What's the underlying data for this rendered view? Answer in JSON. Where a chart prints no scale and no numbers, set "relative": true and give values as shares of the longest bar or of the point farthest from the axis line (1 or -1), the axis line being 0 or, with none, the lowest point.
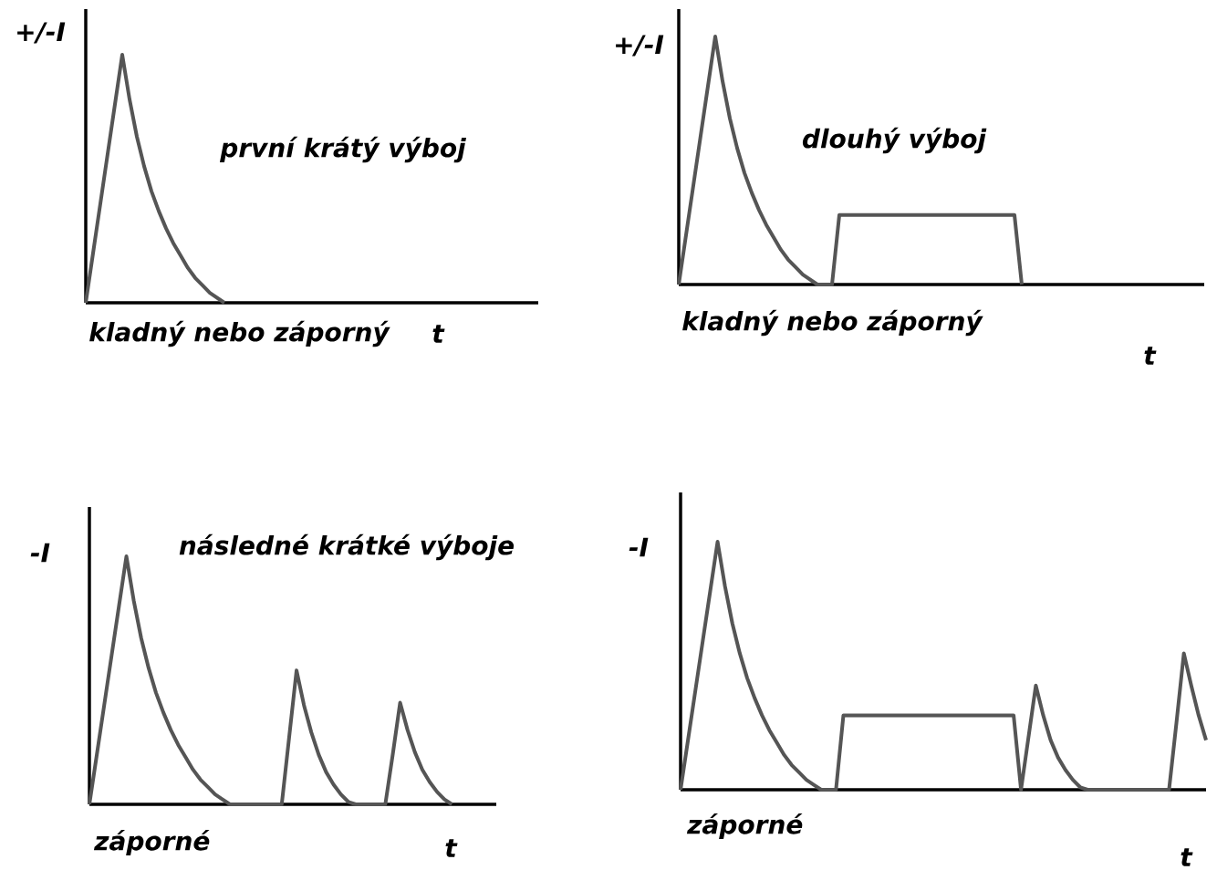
{
  "chart_data": [
    {
      "type": "line",
      "relative": true,
      "title": "první krátý výboj",
      "ylabel": "+/-I",
      "xlabel": "t",
      "annotations": [
        "kladný nebo záporný"
      ],
      "categories": [
        null,
        null,
        null,
        null,
        null,
        null,
        null,
        null,
        null,
        null,
        null,
        null,
        null,
        null,
        null,
        null,
        null,
        null,
        null,
        null,
        null,
        null,
        null,
        null,
        null,
        null,
        null,
        null,
        null,
        null,
        null,
        null,
        null,
        null,
        null,
        null,
        null,
        null,
        null,
        null,
        null,
        null,
        null,
        null,
        null,
        null,
        null,
        null,
        null,
        null,
        null,
        null,
        null,
        null,
        null,
        null,
        null,
        null,
        null,
        null,
        null,
        null,
        null
      ],
      "series": [
        {
          "color": "#555555",
          "values": [
            0,
            0.2,
            0.4,
            0.6,
            0.8,
            1,
            0.82,
            0.67,
            0.55,
            0.45,
            0.37,
            0.3,
            0.24,
            0.19,
            0.14,
            0.1,
            0.07,
            0.04,
            0.02,
            0,
            null,
            null,
            null,
            null,
            null,
            null,
            null,
            null,
            null,
            null,
            null,
            null,
            null,
            null,
            null,
            null,
            null,
            null,
            null,
            null,
            null,
            null,
            null,
            null,
            null,
            null,
            null,
            null,
            null,
            null,
            null,
            null,
            null,
            null,
            null,
            null,
            null,
            null,
            null,
            null,
            null,
            null,
            null
          ]
        }
      ]
    },
    {
      "type": "line",
      "relative": true,
      "title": "dlouhý výboj",
      "ylabel": "+/-I",
      "xlabel": "t",
      "annotations": [
        "kladný nebo záporný"
      ],
      "categories": [
        null,
        null,
        null,
        null,
        null,
        null,
        null,
        null,
        null,
        null,
        null,
        null,
        null,
        null,
        null,
        null,
        null,
        null,
        null,
        null,
        null,
        null,
        null,
        null,
        null,
        null,
        null,
        null,
        null,
        null,
        null,
        null,
        null,
        null,
        null,
        null,
        null,
        null,
        null,
        null,
        null,
        null,
        null,
        null,
        null,
        null,
        null,
        null,
        null,
        null,
        null,
        null,
        null,
        null,
        null,
        null,
        null,
        null,
        null,
        null,
        null,
        null,
        null,
        null,
        null,
        null,
        null,
        null,
        null,
        null,
        null,
        null,
        null
      ],
      "series": [
        {
          "color": "#555555",
          "values": [
            0,
            0.2,
            0.4,
            0.6,
            0.8,
            1,
            0.82,
            0.67,
            0.55,
            0.45,
            0.37,
            0.3,
            0.24,
            0.19,
            0.14,
            0.1,
            0.07,
            0.04,
            0.02,
            0,
            0,
            0,
            0.28,
            0.28,
            0.28,
            0.28,
            0.28,
            0.28,
            0.28,
            0.28,
            0.28,
            0.28,
            0.28,
            0.28,
            0.28,
            0.28,
            0.28,
            0.28,
            0.28,
            0.28,
            0.28,
            0.28,
            0.28,
            0.28,
            0.28,
            0.28,
            0.28,
            0,
            null,
            null,
            null,
            null,
            null,
            null,
            null,
            null,
            null,
            null,
            null,
            null,
            null,
            null,
            null,
            null,
            null,
            null,
            null,
            null,
            null,
            null,
            null,
            null,
            null
          ]
        }
      ]
    },
    {
      "type": "line",
      "relative": true,
      "title": "následné krátké výboje",
      "ylabel": "-I",
      "xlabel": "t",
      "annotations": [
        "záporné"
      ],
      "categories": [
        null,
        null,
        null,
        null,
        null,
        null,
        null,
        null,
        null,
        null,
        null,
        null,
        null,
        null,
        null,
        null,
        null,
        null,
        null,
        null,
        null,
        null,
        null,
        null,
        null,
        null,
        null,
        null,
        null,
        null,
        null,
        null,
        null,
        null,
        null,
        null,
        null,
        null,
        null,
        null,
        null,
        null,
        null,
        null,
        null,
        null,
        null,
        null,
        null,
        null,
        null,
        null,
        null,
        null,
        null,
        null
      ],
      "series": [
        {
          "color": "#555555",
          "values": [
            0,
            0.2,
            0.4,
            0.6,
            0.8,
            1,
            0.82,
            0.67,
            0.55,
            0.45,
            0.37,
            0.3,
            0.24,
            0.19,
            0.14,
            0.1,
            0.07,
            0.04,
            0.02,
            0,
            0,
            0,
            0,
            0,
            0,
            0,
            0,
            0.27,
            0.54,
            0.4,
            0.29,
            0.2,
            0.13,
            0.08,
            0.04,
            0.01,
            0,
            0,
            0,
            0,
            0,
            0.2,
            0.41,
            0.3,
            0.21,
            0.14,
            0.09,
            0.05,
            0.02,
            0,
            null,
            null,
            null,
            null,
            null,
            null
          ]
        }
      ]
    },
    {
      "type": "line",
      "relative": true,
      "ylabel": "-I",
      "xlabel": "t",
      "annotations": [
        "záporné"
      ],
      "categories": [
        null,
        null,
        null,
        null,
        null,
        null,
        null,
        null,
        null,
        null,
        null,
        null,
        null,
        null,
        null,
        null,
        null,
        null,
        null,
        null,
        null,
        null,
        null,
        null,
        null,
        null,
        null,
        null,
        null,
        null,
        null,
        null,
        null,
        null,
        null,
        null,
        null,
        null,
        null,
        null,
        null,
        null,
        null,
        null,
        null,
        null,
        null,
        null,
        null,
        null,
        null,
        null,
        null,
        null,
        null,
        null,
        null,
        null,
        null,
        null,
        null,
        null,
        null,
        null,
        null,
        null,
        null,
        null,
        null,
        null,
        null,
        null
      ],
      "series": [
        {
          "color": "#555555",
          "values": [
            0,
            0.2,
            0.4,
            0.6,
            0.8,
            1,
            0.82,
            0.67,
            0.55,
            0.45,
            0.37,
            0.3,
            0.24,
            0.19,
            0.14,
            0.1,
            0.07,
            0.04,
            0.02,
            0,
            0,
            0,
            0.3,
            0.3,
            0.3,
            0.3,
            0.3,
            0.3,
            0.3,
            0.3,
            0.3,
            0.3,
            0.3,
            0.3,
            0.3,
            0.3,
            0.3,
            0.3,
            0.3,
            0.3,
            0.3,
            0.3,
            0.3,
            0.3,
            0.3,
            0.3,
            0,
            0.21,
            0.42,
            0.3,
            0.2,
            0.13,
            0.08,
            0.04,
            0.01,
            0,
            0,
            0,
            0,
            0,
            0,
            0,
            0,
            0,
            0,
            0,
            0,
            0.27,
            0.55,
            0.42,
            0.3,
            0.2
          ]
        }
      ]
    }
  ]
}
